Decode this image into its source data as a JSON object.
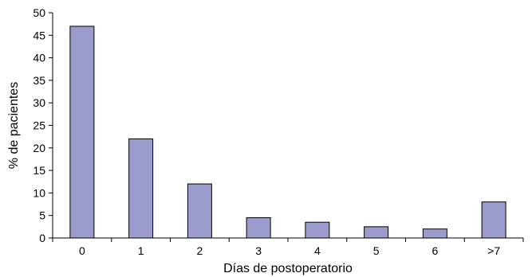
{
  "chart_data": {
    "type": "bar",
    "categories": [
      "0",
      "1",
      "2",
      "3",
      "4",
      "5",
      "6",
      ">7"
    ],
    "values": [
      47,
      22,
      12,
      4.5,
      3.5,
      2.5,
      2,
      8
    ],
    "ylim": [
      0,
      50
    ],
    "yticks": [
      0,
      5,
      10,
      15,
      20,
      25,
      30,
      35,
      40,
      45,
      50
    ],
    "xlabel": "Días de postoperatorio",
    "ylabel": "% de pacientes",
    "grid": false,
    "legend": "none",
    "colors": {
      "bar_fill": "#9b9bcc",
      "bar_stroke": "#000000",
      "axis": "#000000"
    }
  }
}
